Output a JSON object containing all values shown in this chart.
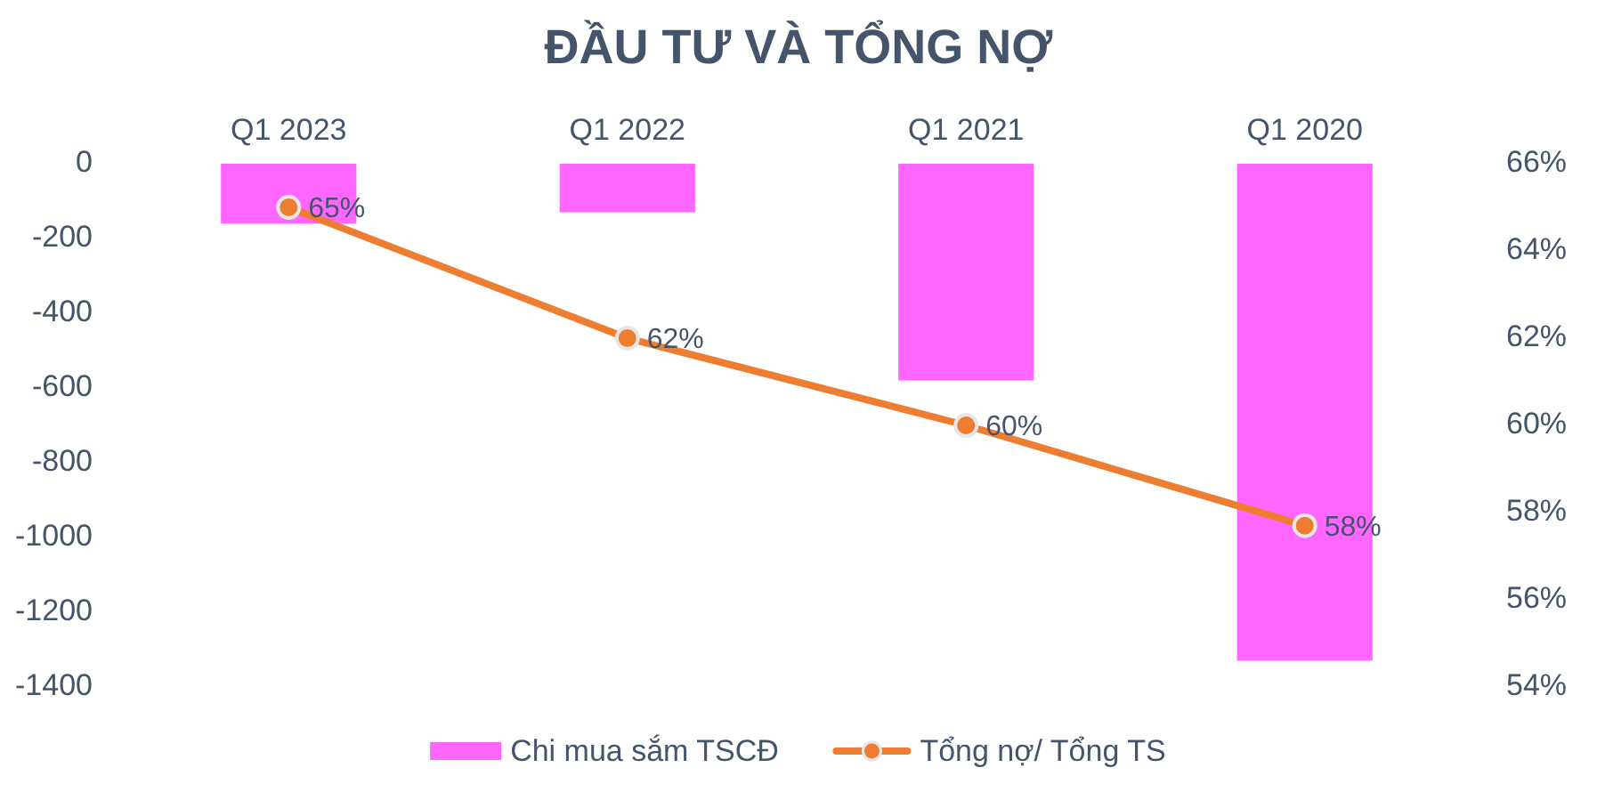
{
  "chart_data": {
    "type": "bar",
    "title": "ĐẦU TƯ VÀ TỔNG NỢ",
    "categories": [
      "Q1 2023",
      "Q1 2022",
      "Q1 2021",
      "Q1 2020"
    ],
    "series": [
      {
        "name": "Chi mua sắm TSCĐ",
        "color": "#ff66ff",
        "values": [
          -160,
          -130,
          -580,
          -1330
        ]
      },
      {
        "name": "Tổng nợ/ Tổng TS",
        "type": "line",
        "axis": "y2",
        "color": "#ed7d31",
        "values": [
          65,
          62,
          60,
          57.7
        ],
        "value_labels": [
          "65%",
          "62%",
          "60%",
          "58%"
        ]
      }
    ],
    "ylim": [
      -1400,
      0
    ],
    "yticks": [
      -1400,
      -1200,
      -1000,
      -800,
      -600,
      -400,
      -200,
      0
    ],
    "y2lim": [
      54,
      66
    ],
    "y2ticks": [
      {
        "value": 54,
        "label": "54%"
      },
      {
        "value": 56,
        "label": "56%"
      },
      {
        "value": 58,
        "label": "58%"
      },
      {
        "value": 60,
        "label": "60%"
      },
      {
        "value": 62,
        "label": "62%"
      },
      {
        "value": 64,
        "label": "64%"
      },
      {
        "value": 66,
        "label": "66%"
      }
    ],
    "marker": "circle",
    "legend": "bottom"
  }
}
